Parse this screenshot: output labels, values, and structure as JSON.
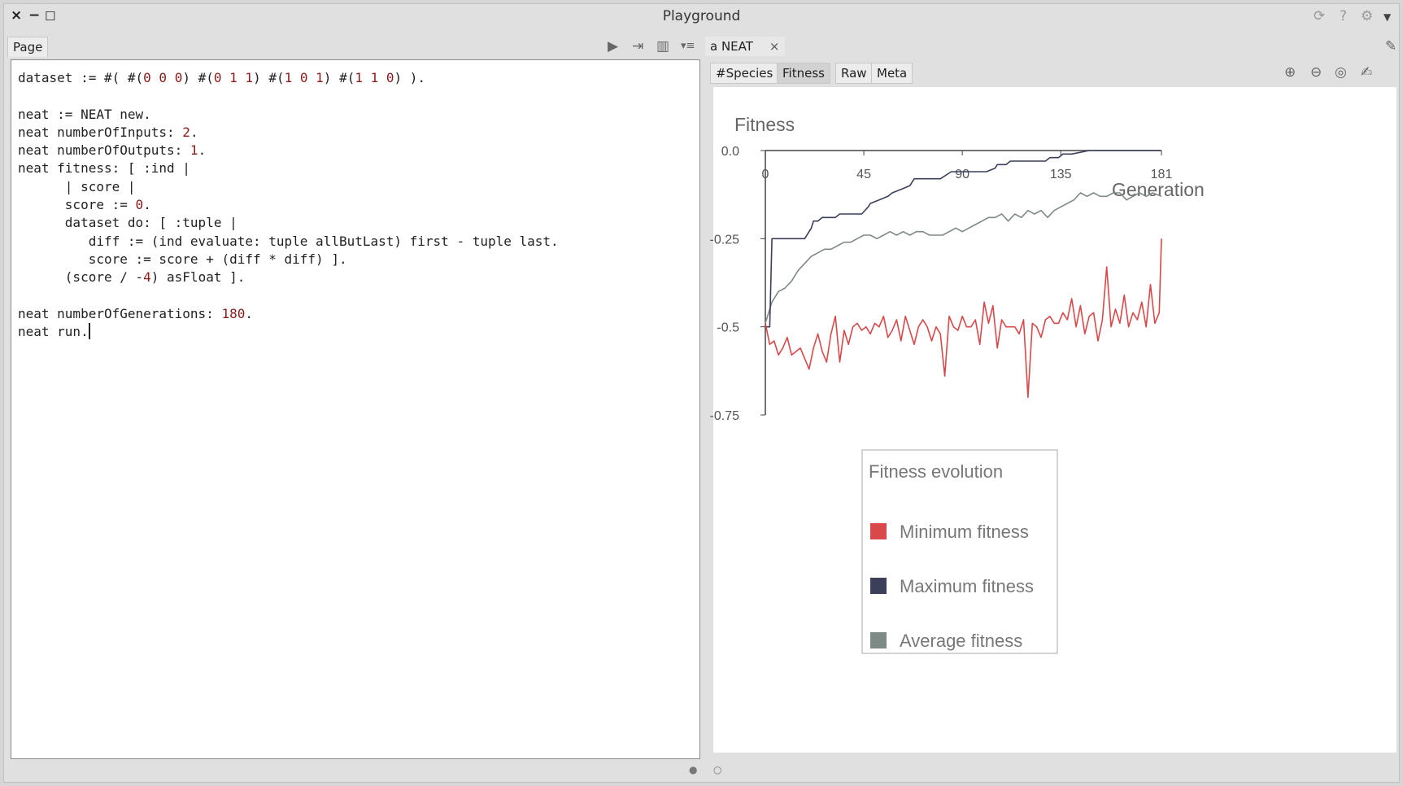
{
  "window": {
    "title": "Playground",
    "close_glyph": "×",
    "minimize_glyph": "−",
    "maximize_glyph": "☐",
    "right_icons": [
      "refresh-icon",
      "help-icon",
      "gear-icon",
      "menu-dropdown-icon"
    ]
  },
  "left_panel": {
    "tab_label": "Page",
    "toolbar_icons": [
      "run-icon",
      "export-icon",
      "columns-icon",
      "list-menu-icon"
    ],
    "code_lines": [
      "dataset := #( #(0 0 0) #(0 1 1) #(1 0 1) #(1 1 0) ).",
      "",
      "neat := NEAT new.",
      "neat numberOfInputs: 2.",
      "neat numberOfOutputs: 1.",
      "neat fitness: [ :ind |",
      "      | score |",
      "      score := 0.",
      "      dataset do: [ :tuple |",
      "         diff := (ind evaluate: tuple allButLast) first - tuple last.",
      "         score := score + (diff * diff) ].",
      "      (score / -4) asFloat ].",
      "",
      "neat numberOfGenerations: 180.",
      "neat run."
    ]
  },
  "right_panel": {
    "tab_label": "a NEAT",
    "tab_close": "×",
    "view_tabs": [
      "#Species",
      "Fitness",
      "Raw",
      "Meta"
    ],
    "active_view_tab": "Fitness",
    "zoom_icons": [
      "zoom-in-icon",
      "zoom-out-icon",
      "zoom-reset-icon",
      "pen-icon"
    ]
  },
  "chart_data": {
    "type": "line",
    "ylabel": "Fitness",
    "xlabel": "Generation",
    "x_ticks": [
      0,
      45,
      90,
      135,
      181
    ],
    "y_ticks": [
      0.0,
      -0.25,
      -0.5,
      -0.75
    ],
    "y_tick_labels": [
      "0.0",
      "-0.25",
      "-0.5",
      "-0.75"
    ],
    "xlim": [
      0,
      181
    ],
    "ylim": [
      -0.75,
      0.0
    ],
    "legend_title": "Fitness evolution",
    "legend_position": "bottom-center",
    "series": [
      {
        "name": "Minimum fitness",
        "color": "#d9484a",
        "x": [
          0,
          2,
          4,
          6,
          8,
          10,
          12,
          14,
          16,
          18,
          20,
          22,
          24,
          26,
          28,
          30,
          32,
          34,
          36,
          38,
          40,
          42,
          44,
          46,
          48,
          50,
          52,
          54,
          56,
          58,
          60,
          62,
          64,
          66,
          68,
          70,
          72,
          74,
          76,
          78,
          80,
          82,
          84,
          86,
          88,
          90,
          92,
          94,
          96,
          98,
          100,
          102,
          104,
          106,
          108,
          110,
          112,
          114,
          116,
          118,
          120,
          122,
          124,
          126,
          128,
          130,
          132,
          134,
          136,
          138,
          140,
          142,
          144,
          146,
          148,
          150,
          152,
          154,
          156,
          158,
          160,
          162,
          164,
          166,
          168,
          170,
          172,
          174,
          176,
          178,
          180,
          181
        ],
        "values": [
          -0.49,
          -0.55,
          -0.54,
          -0.58,
          -0.56,
          -0.53,
          -0.58,
          -0.57,
          -0.56,
          -0.59,
          -0.62,
          -0.56,
          -0.52,
          -0.57,
          -0.6,
          -0.52,
          -0.47,
          -0.6,
          -0.51,
          -0.55,
          -0.5,
          -0.49,
          -0.51,
          -0.5,
          -0.52,
          -0.49,
          -0.5,
          -0.47,
          -0.53,
          -0.51,
          -0.48,
          -0.54,
          -0.47,
          -0.51,
          -0.55,
          -0.5,
          -0.48,
          -0.5,
          -0.54,
          -0.5,
          -0.52,
          -0.64,
          -0.47,
          -0.5,
          -0.51,
          -0.47,
          -0.5,
          -0.5,
          -0.48,
          -0.55,
          -0.43,
          -0.49,
          -0.44,
          -0.56,
          -0.48,
          -0.5,
          -0.5,
          -0.5,
          -0.52,
          -0.48,
          -0.7,
          -0.49,
          -0.5,
          -0.53,
          -0.48,
          -0.47,
          -0.49,
          -0.49,
          -0.46,
          -0.48,
          -0.42,
          -0.5,
          -0.44,
          -0.52,
          -0.47,
          -0.46,
          -0.54,
          -0.48,
          -0.33,
          -0.5,
          -0.45,
          -0.49,
          -0.41,
          -0.5,
          -0.46,
          -0.48,
          -0.43,
          -0.5,
          -0.38,
          -0.49,
          -0.46,
          -0.25
        ]
      },
      {
        "name": "Maximum fitness",
        "color": "#3c3f5a",
        "x": [
          0,
          2,
          3,
          18,
          21,
          22,
          24,
          26,
          32,
          34,
          44,
          47,
          48,
          52,
          56,
          58,
          62,
          66,
          68,
          72,
          80,
          85,
          90,
          101,
          105,
          106,
          110,
          112,
          120,
          128,
          130,
          134,
          136,
          140,
          148,
          156,
          160,
          181
        ],
        "values": [
          -0.5,
          -0.5,
          -0.25,
          -0.25,
          -0.22,
          -0.2,
          -0.2,
          -0.19,
          -0.19,
          -0.18,
          -0.18,
          -0.16,
          -0.15,
          -0.14,
          -0.13,
          -0.12,
          -0.11,
          -0.1,
          -0.08,
          -0.08,
          -0.08,
          -0.06,
          -0.06,
          -0.06,
          -0.05,
          -0.04,
          -0.04,
          -0.03,
          -0.03,
          -0.03,
          -0.02,
          -0.02,
          -0.01,
          -0.01,
          0.0,
          0.0,
          0.0,
          0.0
        ]
      },
      {
        "name": "Average fitness",
        "color": "#7e8a85",
        "x": [
          0,
          3,
          6,
          9,
          12,
          15,
          18,
          21,
          24,
          27,
          30,
          33,
          36,
          39,
          42,
          45,
          48,
          51,
          54,
          57,
          60,
          63,
          66,
          69,
          72,
          75,
          78,
          81,
          84,
          87,
          90,
          93,
          96,
          99,
          102,
          105,
          108,
          111,
          114,
          117,
          120,
          123,
          126,
          129,
          132,
          135,
          138,
          141,
          144,
          147,
          150,
          153,
          156,
          159,
          162,
          165,
          168,
          171,
          174,
          177,
          181
        ],
        "values": [
          -0.49,
          -0.43,
          -0.4,
          -0.39,
          -0.37,
          -0.34,
          -0.32,
          -0.3,
          -0.29,
          -0.28,
          -0.28,
          -0.27,
          -0.26,
          -0.26,
          -0.25,
          -0.24,
          -0.24,
          -0.25,
          -0.24,
          -0.23,
          -0.24,
          -0.23,
          -0.24,
          -0.23,
          -0.23,
          -0.24,
          -0.24,
          -0.24,
          -0.23,
          -0.22,
          -0.23,
          -0.22,
          -0.21,
          -0.2,
          -0.19,
          -0.19,
          -0.18,
          -0.2,
          -0.18,
          -0.19,
          -0.17,
          -0.18,
          -0.17,
          -0.19,
          -0.17,
          -0.16,
          -0.15,
          -0.14,
          -0.12,
          -0.13,
          -0.12,
          -0.13,
          -0.13,
          -0.12,
          -0.12,
          -0.14,
          -0.13,
          -0.12,
          -0.13,
          -0.12,
          -0.13
        ]
      }
    ]
  }
}
